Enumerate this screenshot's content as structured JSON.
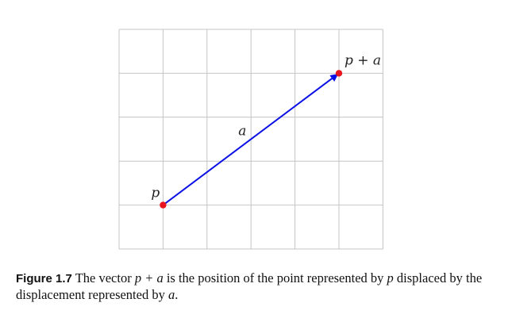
{
  "diagram": {
    "grid": {
      "cols": 6,
      "rows": 5
    },
    "points": [
      {
        "id": "p",
        "label": "p",
        "col": 1,
        "row": 1,
        "color": "#e8141e"
      },
      {
        "id": "p_plus_a",
        "label": "p + a",
        "col": 5,
        "row": 4,
        "color": "#e8141e"
      }
    ],
    "vector": {
      "label": "a",
      "from": "p",
      "to": "p_plus_a",
      "color": "#0a10e6"
    },
    "grid_color": "#c4c4c4"
  },
  "caption": {
    "label": "Figure 1.7",
    "text_1": "The vector",
    "expr_1": "p + a",
    "text_2": "is the position of the point represented by",
    "expr_2": "p",
    "text_3": "displaced by the displacement represented by",
    "expr_3": "a",
    "text_4": "."
  }
}
